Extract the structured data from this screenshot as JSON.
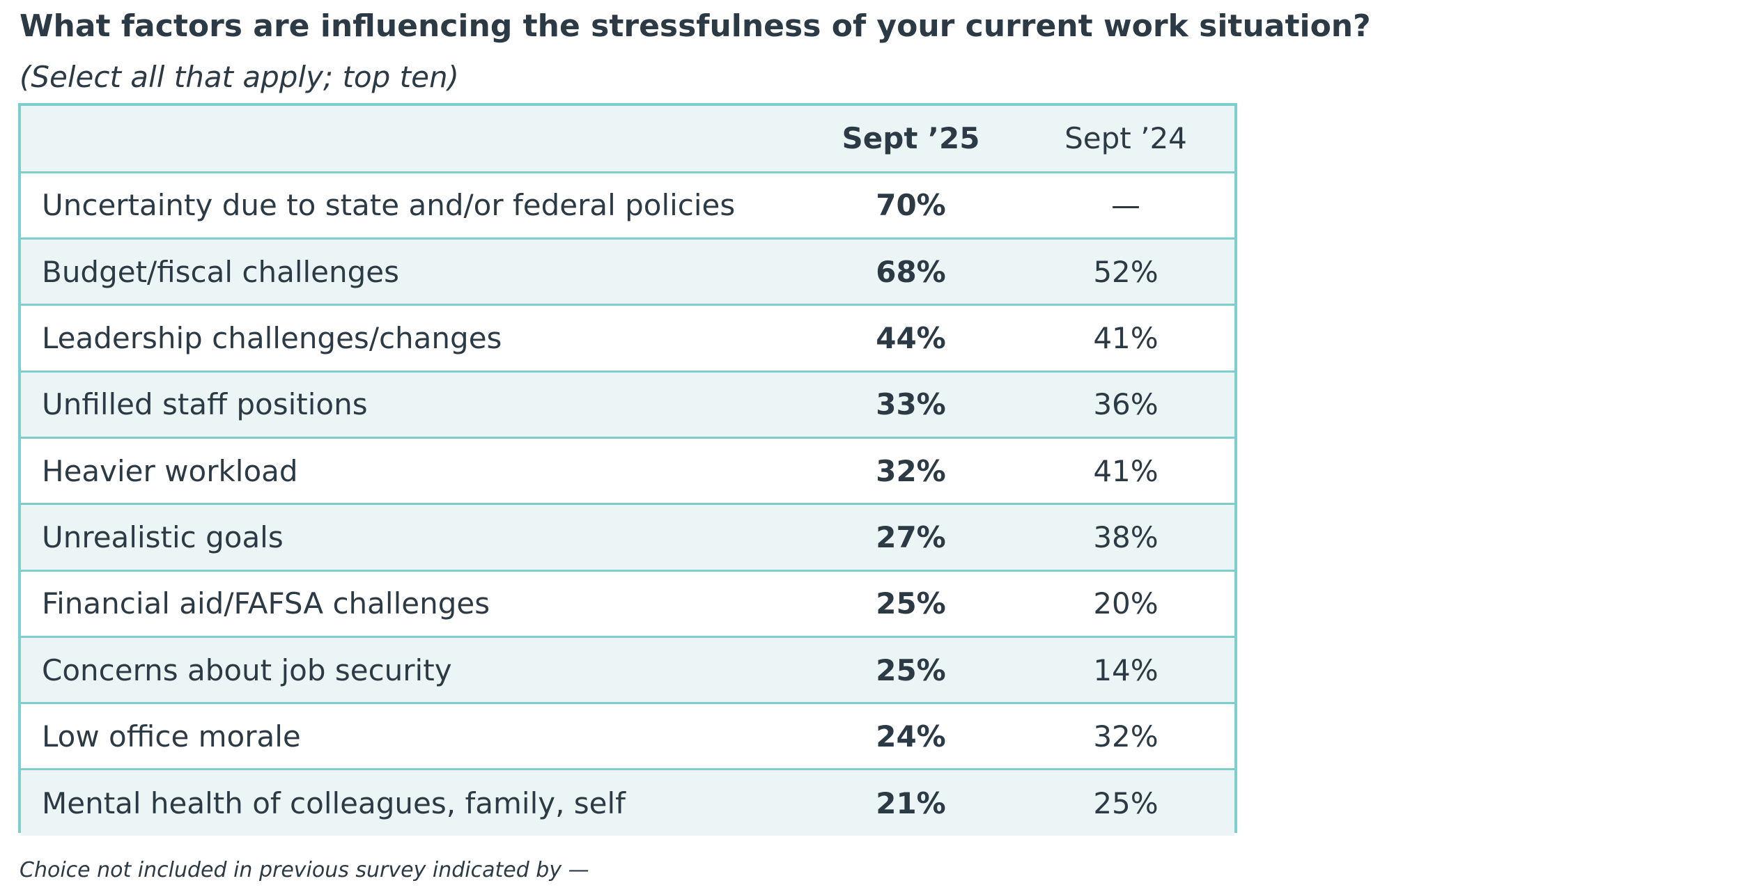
{
  "chart_data": {
    "type": "table",
    "title": "What factors are influencing the stressfulness of your current work situation?",
    "subtitle": "(Select all that apply; top ten)",
    "columns": [
      "",
      "Sept ’25",
      "Sept ’24"
    ],
    "rows": [
      {
        "label": "Uncertainty due to state and/or federal policies",
        "sept25": "70%",
        "sept24": "—"
      },
      {
        "label": "Budget/fiscal challenges",
        "sept25": "68%",
        "sept24": "52%"
      },
      {
        "label": "Leadership challenges/changes",
        "sept25": "44%",
        "sept24": "41%"
      },
      {
        "label": "Unfilled staff positions",
        "sept25": "33%",
        "sept24": "36%"
      },
      {
        "label": "Heavier workload",
        "sept25": "32%",
        "sept24": "41%"
      },
      {
        "label": "Unrealistic goals",
        "sept25": "27%",
        "sept24": "38%"
      },
      {
        "label": "Financial aid/FAFSA challenges",
        "sept25": "25%",
        "sept24": "20%"
      },
      {
        "label": "Concerns about job security",
        "sept25": "25%",
        "sept24": "14%"
      },
      {
        "label": "Low office morale",
        "sept25": "24%",
        "sept24": "32%"
      },
      {
        "label": "Mental health of colleagues, family, self",
        "sept25": "21%",
        "sept24": "25%"
      }
    ],
    "footnote": "Choice not included in previous survey indicated by —",
    "colors": {
      "border": "#7ccfcd",
      "shade": "#ebf5f5",
      "text": "#2c3a45"
    }
  }
}
